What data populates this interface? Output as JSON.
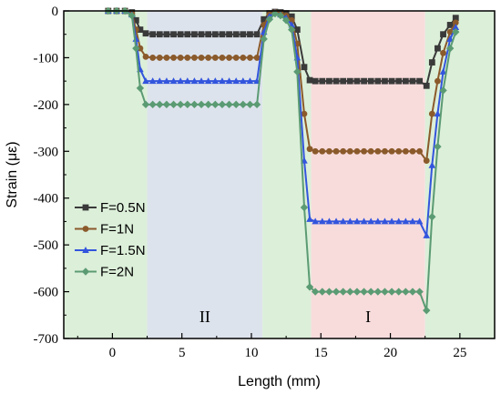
{
  "chart_data": {
    "type": "line",
    "xlabel": "Length (mm)",
    "ylabel": "Strain (με)",
    "xlim": [
      -3.5,
      27.5
    ],
    "ylim": [
      -700,
      0
    ],
    "xticks": [
      0,
      5,
      10,
      15,
      20,
      25
    ],
    "yticks": [
      0,
      -100,
      -200,
      -300,
      -400,
      -500,
      -600,
      -700
    ],
    "regions": [
      {
        "x0": -3.5,
        "x1": 2.5,
        "color": "#dcefd9",
        "label": ""
      },
      {
        "x0": 2.5,
        "x1": 10.8,
        "color": "#dde3ec",
        "label": "II"
      },
      {
        "x0": 10.8,
        "x1": 14.3,
        "color": "#dcefd9",
        "label": ""
      },
      {
        "x0": 14.3,
        "x1": 22.5,
        "color": "#f8dcdc",
        "label": "I"
      },
      {
        "x0": 22.5,
        "x1": 27.5,
        "color": "#dcefd9",
        "label": ""
      }
    ],
    "legend_position": "left",
    "series": [
      {
        "name": "F=0.5N",
        "color": "#3a3a3a",
        "marker": "square",
        "x": [
          -0.3,
          0.3,
          0.9,
          1.4,
          1.7,
          2.0,
          2.4,
          2.9,
          3.4,
          3.9,
          4.4,
          4.9,
          5.4,
          5.9,
          6.4,
          6.9,
          7.4,
          7.9,
          8.4,
          8.9,
          9.4,
          9.9,
          10.4,
          10.9,
          11.3,
          11.7,
          12.1,
          12.5,
          12.9,
          13.3,
          13.8,
          14.2,
          14.6,
          15.1,
          15.6,
          16.1,
          16.6,
          17.1,
          17.6,
          18.1,
          18.6,
          19.1,
          19.6,
          20.1,
          20.6,
          21.1,
          21.6,
          22.1,
          22.6,
          23.0,
          23.4,
          23.8,
          24.3,
          24.7
        ],
        "y": [
          0,
          0,
          0,
          -3,
          -20,
          -40,
          -48,
          -50,
          -50,
          -50,
          -50,
          -50,
          -50,
          -50,
          -50,
          -50,
          -50,
          -50,
          -50,
          -50,
          -50,
          -50,
          -50,
          -18,
          -5,
          -2,
          -3,
          -5,
          -12,
          -40,
          -120,
          -148,
          -150,
          -150,
          -150,
          -150,
          -150,
          -150,
          -150,
          -150,
          -150,
          -150,
          -150,
          -150,
          -150,
          -150,
          -150,
          -150,
          -160,
          -110,
          -80,
          -50,
          -30,
          -15
        ]
      },
      {
        "name": "F=1N",
        "color": "#8b5a2b",
        "marker": "circle",
        "x": [
          -0.3,
          0.3,
          0.9,
          1.4,
          1.7,
          2.0,
          2.4,
          2.9,
          3.4,
          3.9,
          4.4,
          4.9,
          5.4,
          5.9,
          6.4,
          6.9,
          7.4,
          7.9,
          8.4,
          8.9,
          9.4,
          9.9,
          10.4,
          10.9,
          11.3,
          11.7,
          12.1,
          12.5,
          12.9,
          13.3,
          13.8,
          14.2,
          14.6,
          15.1,
          15.6,
          16.1,
          16.6,
          17.1,
          17.6,
          18.1,
          18.6,
          19.1,
          19.6,
          20.1,
          20.6,
          21.1,
          21.6,
          22.1,
          22.6,
          23.0,
          23.4,
          23.8,
          24.3,
          24.7
        ],
        "y": [
          0,
          0,
          0,
          -5,
          -40,
          -80,
          -98,
          -100,
          -100,
          -100,
          -100,
          -100,
          -100,
          -100,
          -100,
          -100,
          -100,
          -100,
          -100,
          -100,
          -100,
          -100,
          -100,
          -30,
          -8,
          -3,
          -5,
          -10,
          -20,
          -70,
          -220,
          -295,
          -300,
          -300,
          -300,
          -300,
          -300,
          -300,
          -300,
          -300,
          -300,
          -300,
          -300,
          -300,
          -300,
          -300,
          -300,
          -300,
          -320,
          -220,
          -150,
          -90,
          -45,
          -25
        ]
      },
      {
        "name": "F=1.5N",
        "color": "#3355dd",
        "marker": "triangle",
        "x": [
          -0.3,
          0.3,
          0.9,
          1.4,
          1.7,
          2.0,
          2.4,
          2.9,
          3.4,
          3.9,
          4.4,
          4.9,
          5.4,
          5.9,
          6.4,
          6.9,
          7.4,
          7.9,
          8.4,
          8.9,
          9.4,
          9.9,
          10.4,
          10.9,
          11.3,
          11.7,
          12.1,
          12.5,
          12.9,
          13.3,
          13.8,
          14.2,
          14.6,
          15.1,
          15.6,
          16.1,
          16.6,
          17.1,
          17.6,
          18.1,
          18.6,
          19.1,
          19.6,
          20.1,
          20.6,
          21.1,
          21.6,
          22.1,
          22.6,
          23.0,
          23.4,
          23.8,
          24.3,
          24.7
        ],
        "y": [
          0,
          0,
          0,
          -8,
          -60,
          -125,
          -150,
          -150,
          -150,
          -150,
          -150,
          -150,
          -150,
          -150,
          -150,
          -150,
          -150,
          -150,
          -150,
          -150,
          -150,
          -150,
          -150,
          -45,
          -12,
          -4,
          -8,
          -15,
          -30,
          -100,
          -320,
          -445,
          -450,
          -450,
          -450,
          -450,
          -450,
          -450,
          -450,
          -450,
          -450,
          -450,
          -450,
          -450,
          -450,
          -450,
          -450,
          -450,
          -480,
          -330,
          -220,
          -130,
          -60,
          -35
        ]
      },
      {
        "name": "F=2N",
        "color": "#5b9b73",
        "marker": "diamond",
        "x": [
          -0.3,
          0.3,
          0.9,
          1.4,
          1.7,
          2.0,
          2.4,
          2.9,
          3.4,
          3.9,
          4.4,
          4.9,
          5.4,
          5.9,
          6.4,
          6.9,
          7.4,
          7.9,
          8.4,
          8.9,
          9.4,
          9.9,
          10.4,
          10.9,
          11.3,
          11.7,
          12.1,
          12.5,
          12.9,
          13.3,
          13.8,
          14.2,
          14.6,
          15.1,
          15.6,
          16.1,
          16.6,
          17.1,
          17.6,
          18.1,
          18.6,
          19.1,
          19.6,
          20.1,
          20.6,
          21.1,
          21.6,
          22.1,
          22.6,
          23.0,
          23.4,
          23.8,
          24.3,
          24.7
        ],
        "y": [
          0,
          0,
          0,
          -10,
          -80,
          -165,
          -200,
          -200,
          -200,
          -200,
          -200,
          -200,
          -200,
          -200,
          -200,
          -200,
          -200,
          -200,
          -200,
          -200,
          -200,
          -200,
          -200,
          -60,
          -18,
          -6,
          -10,
          -20,
          -40,
          -130,
          -420,
          -590,
          -600,
          -600,
          -600,
          -600,
          -600,
          -600,
          -600,
          -600,
          -600,
          -600,
          -600,
          -600,
          -600,
          -600,
          -600,
          -600,
          -640,
          -440,
          -290,
          -170,
          -80,
          -45
        ]
      }
    ]
  }
}
